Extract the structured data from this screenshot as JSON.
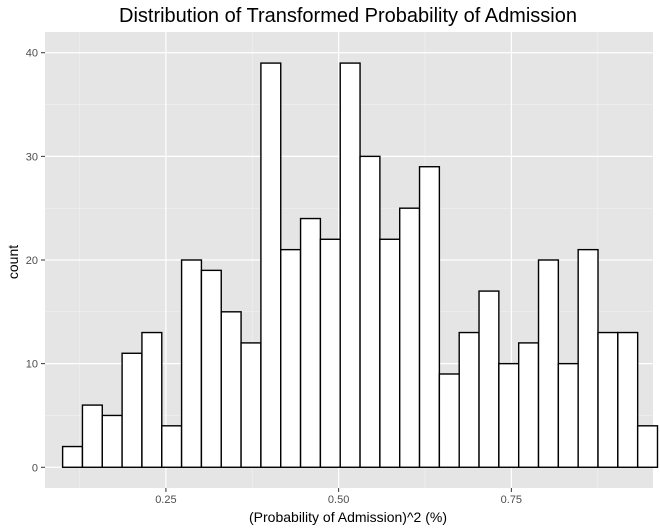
{
  "chart_data": {
    "type": "bar",
    "title": "Distribution of Transformed Probability of Admission",
    "xlabel": "(Probability of Admission)^2 (%)",
    "ylabel": "count",
    "xlim": [
      0.075,
      0.955
    ],
    "ylim": [
      -2,
      42
    ],
    "x_ticks": [
      0.25,
      0.5,
      0.75
    ],
    "x_tick_labels": [
      "0.25",
      "0.50",
      "0.75"
    ],
    "y_ticks": [
      0,
      10,
      20,
      30,
      40
    ],
    "y_tick_labels": [
      "0",
      "10",
      "20",
      "30",
      "40"
    ],
    "bin_start": 0.1005,
    "bin_width": 0.0287,
    "values": [
      2,
      6,
      5,
      11,
      13,
      4,
      20,
      19,
      15,
      12,
      39,
      21,
      24,
      22,
      39,
      30,
      22,
      25,
      29,
      9,
      13,
      17,
      10,
      12,
      20,
      10,
      21,
      13,
      13,
      4
    ],
    "grid": true,
    "colors": {
      "panel_background": "#e5e5e5",
      "grid_major": "#ffffff",
      "grid_minor": "#f2f2f2",
      "bar_fill": "#ffffff",
      "bar_outline": "#000000"
    }
  }
}
